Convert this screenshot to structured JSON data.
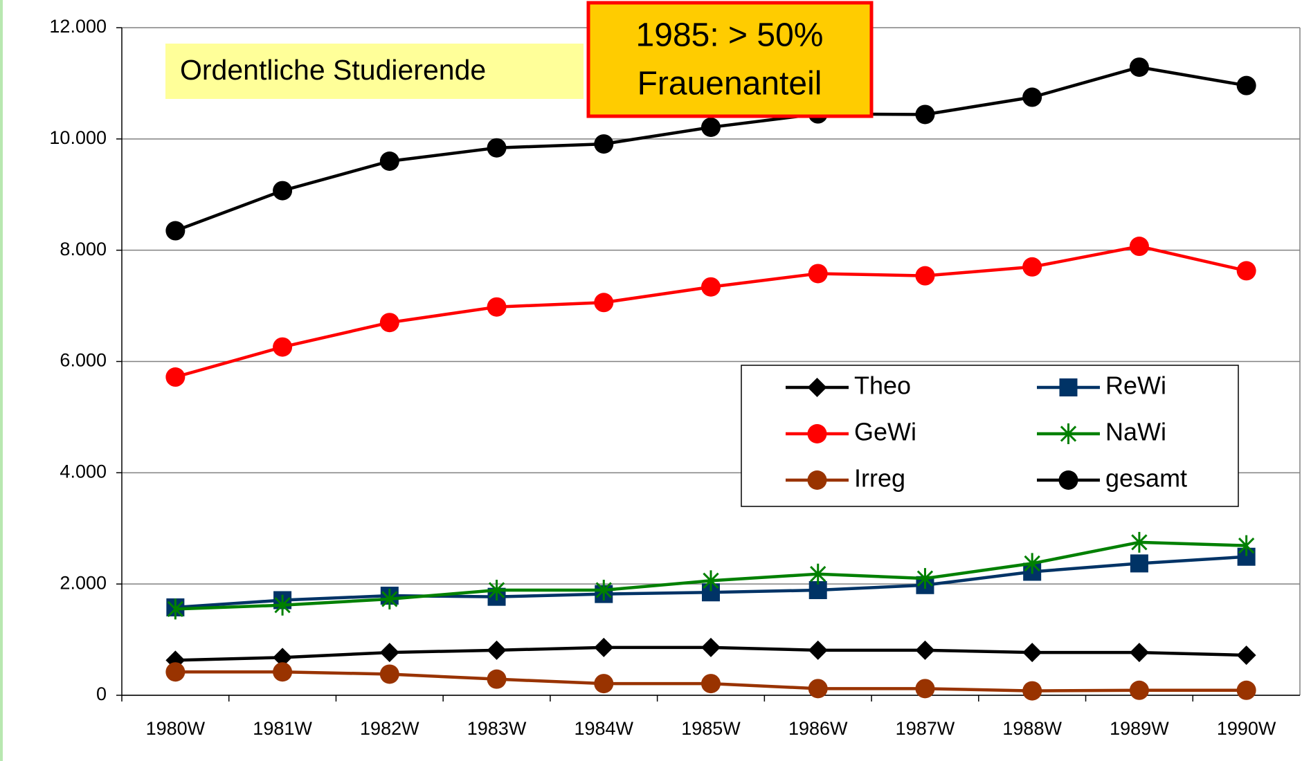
{
  "chart_data": {
    "type": "line",
    "title": "Ordentliche Studierende",
    "annotation": [
      "1985: > 50%",
      "Frauenanteil"
    ],
    "categories": [
      "1980W",
      "1981W",
      "1982W",
      "1983W",
      "1984W",
      "1985W",
      "1986W",
      "1987W",
      "1988W",
      "1989W",
      "1990W"
    ],
    "series": [
      {
        "name": "Theo",
        "color": "#000000",
        "marker": "diamond",
        "values": [
          630,
          680,
          770,
          810,
          860,
          860,
          810,
          810,
          770,
          770,
          720
        ]
      },
      {
        "name": "ReWi",
        "color": "#003366",
        "marker": "square",
        "values": [
          1580,
          1710,
          1790,
          1770,
          1820,
          1850,
          1890,
          1980,
          2220,
          2370,
          2490
        ]
      },
      {
        "name": "GeWi",
        "color": "#ff0000",
        "marker": "circle",
        "values": [
          5720,
          6260,
          6700,
          6980,
          7060,
          7340,
          7580,
          7540,
          7700,
          8070,
          7630
        ]
      },
      {
        "name": "NaWi",
        "color": "#008000",
        "marker": "asterisk",
        "values": [
          1550,
          1620,
          1730,
          1890,
          1890,
          2060,
          2180,
          2100,
          2370,
          2750,
          2690
        ]
      },
      {
        "name": "Irreg",
        "color": "#993300",
        "marker": "circle",
        "values": [
          420,
          420,
          380,
          290,
          210,
          210,
          120,
          120,
          80,
          90,
          90
        ]
      },
      {
        "name": "gesamt",
        "color": "#000000",
        "marker": "circle",
        "values": [
          8350,
          9070,
          9600,
          9840,
          9910,
          10210,
          10450,
          10440,
          10750,
          11290,
          10960
        ]
      }
    ],
    "ylim": [
      0,
      12000
    ],
    "yticks": [
      0,
      {
        "value": 2000,
        "label": "2.000"
      },
      {
        "value": 4000,
        "label": "4.000"
      },
      {
        "value": 6000,
        "label": "6.000"
      },
      {
        "value": 8000,
        "label": "8.000"
      },
      {
        "value": 10000,
        "label": "10.000"
      },
      {
        "value": 12000,
        "label": "12.000"
      }
    ],
    "grid": true
  }
}
